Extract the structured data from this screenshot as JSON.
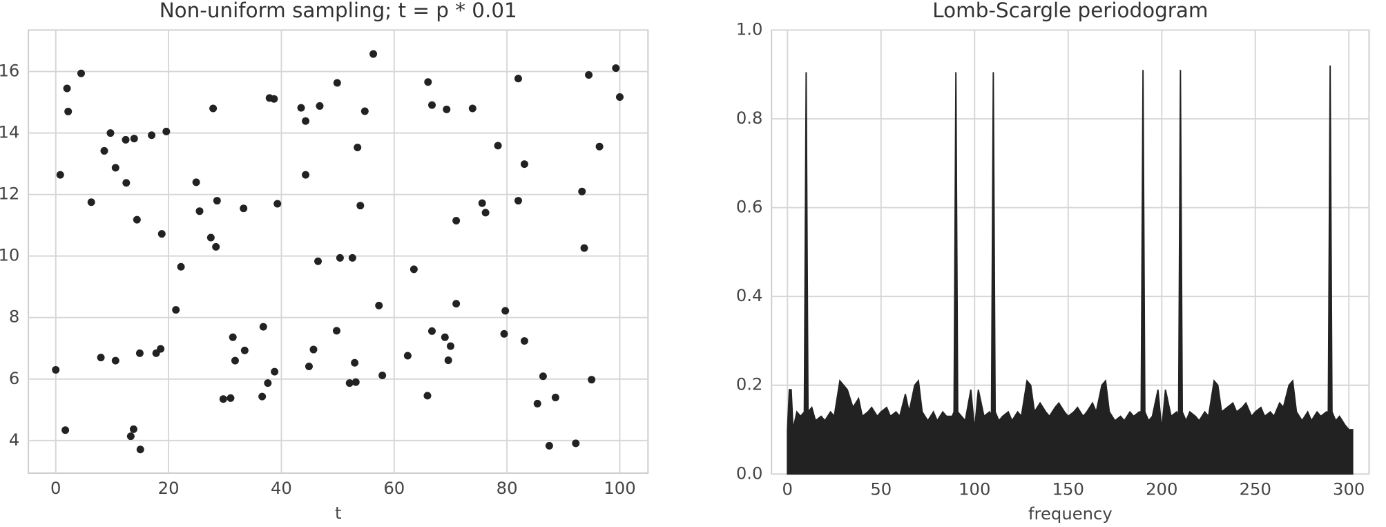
{
  "chart_data": [
    {
      "type": "scatter",
      "title": "Non-uniform sampling; t = p * 0.01",
      "xlabel": "t",
      "color": "#222222",
      "x": [
        0,
        0.8,
        1.7,
        2,
        2.2,
        4.5,
        6.3,
        8,
        8.6,
        9.7,
        10.6,
        10.6,
        12.4,
        12.5,
        13.3,
        13.8,
        13.9,
        14.4,
        14.9,
        15,
        17,
        17.8,
        18.6,
        18.8,
        19.6,
        21.3,
        22.2,
        24.9,
        25.5,
        27.5,
        27.9,
        28.4,
        28.6,
        29.7,
        31,
        31.4,
        31.8,
        33.3,
        33.5,
        36.6,
        36.8,
        37.6,
        37.9,
        38.7,
        38.8,
        39.3,
        43.5,
        44.3,
        44.3,
        44.9,
        45.7,
        46.5,
        46.8,
        49.8,
        49.9,
        50.4,
        52.1,
        52.6,
        53.2,
        53,
        53.5,
        54,
        54.8,
        56.3,
        57.3,
        57.9,
        62.4,
        63.5,
        65.9,
        66,
        66.7,
        66.7,
        69,
        69.3,
        69.6,
        70,
        71,
        71,
        73.9,
        75.6,
        76.2,
        78.4,
        79.5,
        79.7,
        82,
        82,
        83.1,
        83.1,
        85.4,
        86.4,
        87.5,
        88.6,
        92.2,
        93.3,
        93.7,
        94.5,
        95,
        96.4,
        99.3,
        100
      ],
      "y": [
        6.3,
        12.64,
        4.34,
        15.45,
        14.7,
        15.94,
        11.75,
        6.7,
        13.42,
        14,
        12.87,
        6.6,
        13.78,
        12.38,
        4.14,
        4.37,
        13.82,
        11.18,
        6.84,
        3.71,
        13.93,
        6.84,
        6.98,
        10.72,
        14.05,
        8.25,
        9.65,
        12.4,
        11.46,
        10.6,
        14.8,
        10.3,
        11.8,
        5.35,
        5.38,
        7.36,
        6.6,
        11.55,
        6.93,
        5.43,
        7.7,
        5.87,
        15.14,
        15.11,
        6.24,
        11.7,
        14.82,
        14.39,
        12.64,
        6.41,
        6.96,
        9.83,
        14.88,
        7.57,
        15.63,
        9.94,
        5.87,
        9.94,
        5.9,
        6.53,
        13.53,
        11.64,
        14.71,
        16.57,
        8.39,
        6.12,
        6.76,
        9.57,
        5.46,
        15.66,
        14.91,
        7.56,
        7.36,
        14.77,
        6.61,
        7.07,
        8.45,
        11.15,
        14.8,
        11.72,
        11.41,
        13.59,
        7.47,
        8.22,
        11.8,
        15.77,
        12.99,
        7.24,
        5.2,
        6.09,
        3.83,
        5.4,
        3.91,
        12.1,
        10.26,
        15.89,
        5.98,
        13.56,
        16.11,
        15.17
      ],
      "xlim": [
        -4.85,
        105
      ],
      "ylim": [
        2.94,
        17.35
      ],
      "xticks": [
        0,
        20,
        40,
        60,
        80,
        100
      ],
      "yticks": [
        4,
        6,
        8,
        10,
        12,
        14,
        16
      ],
      "grid": true
    },
    {
      "type": "area",
      "title": "Lomb-Scargle periodogram",
      "xlabel": "frequency",
      "color": "#222222",
      "x": [
        0,
        1,
        2,
        3,
        5,
        7,
        9,
        10,
        11,
        13,
        15,
        18,
        20,
        23,
        25,
        28,
        30,
        32,
        35,
        38,
        40,
        43,
        45,
        48,
        50,
        53,
        55,
        58,
        60,
        63,
        65,
        68,
        70,
        72,
        75,
        78,
        80,
        83,
        85,
        88,
        89,
        90,
        91,
        93,
        95,
        98,
        100,
        102,
        105,
        108,
        109,
        110,
        111,
        113,
        115,
        118,
        120,
        123,
        125,
        128,
        130,
        132,
        135,
        138,
        140,
        143,
        145,
        148,
        150,
        153,
        155,
        158,
        160,
        163,
        165,
        168,
        170,
        172,
        175,
        178,
        180,
        183,
        185,
        188,
        189,
        190,
        191,
        193,
        195,
        198,
        200,
        202,
        205,
        208,
        209,
        210,
        211,
        213,
        215,
        218,
        220,
        223,
        225,
        228,
        230,
        232,
        235,
        238,
        240,
        243,
        245,
        248,
        250,
        253,
        255,
        258,
        260,
        263,
        265,
        268,
        270,
        272,
        275,
        278,
        280,
        283,
        285,
        288,
        289,
        290,
        291,
        293,
        295,
        298,
        300,
        302
      ],
      "y": [
        0.1,
        0.19,
        0.19,
        0.1,
        0.14,
        0.13,
        0.14,
        0.905,
        0.14,
        0.15,
        0.12,
        0.13,
        0.12,
        0.14,
        0.13,
        0.21,
        0.2,
        0.19,
        0.15,
        0.17,
        0.13,
        0.14,
        0.15,
        0.13,
        0.14,
        0.15,
        0.13,
        0.14,
        0.13,
        0.18,
        0.14,
        0.2,
        0.21,
        0.14,
        0.12,
        0.14,
        0.12,
        0.14,
        0.13,
        0.13,
        0.14,
        0.905,
        0.14,
        0.13,
        0.12,
        0.19,
        0.1,
        0.19,
        0.13,
        0.14,
        0.13,
        0.905,
        0.14,
        0.12,
        0.13,
        0.14,
        0.12,
        0.14,
        0.13,
        0.21,
        0.2,
        0.14,
        0.16,
        0.14,
        0.13,
        0.15,
        0.16,
        0.14,
        0.13,
        0.14,
        0.15,
        0.13,
        0.14,
        0.16,
        0.14,
        0.2,
        0.21,
        0.14,
        0.12,
        0.13,
        0.12,
        0.14,
        0.13,
        0.14,
        0.14,
        0.91,
        0.14,
        0.12,
        0.13,
        0.19,
        0.1,
        0.19,
        0.13,
        0.14,
        0.13,
        0.91,
        0.14,
        0.12,
        0.14,
        0.13,
        0.12,
        0.14,
        0.13,
        0.21,
        0.2,
        0.14,
        0.15,
        0.16,
        0.14,
        0.15,
        0.16,
        0.13,
        0.14,
        0.15,
        0.13,
        0.14,
        0.13,
        0.16,
        0.15,
        0.2,
        0.21,
        0.14,
        0.12,
        0.14,
        0.12,
        0.14,
        0.13,
        0.14,
        0.14,
        0.92,
        0.14,
        0.12,
        0.13,
        0.11,
        0.1,
        0.1
      ],
      "xlim": [
        -8.5,
        310.8
      ],
      "ylim": [
        0,
        1
      ],
      "xticks": [
        0,
        50,
        100,
        150,
        200,
        250,
        300
      ],
      "yticks": [
        {
          "value": 0,
          "label": "0.0"
        },
        0.2,
        0.4,
        0.6,
        0.8,
        {
          "value": 1,
          "label": "1.0"
        }
      ],
      "grid": true
    }
  ]
}
